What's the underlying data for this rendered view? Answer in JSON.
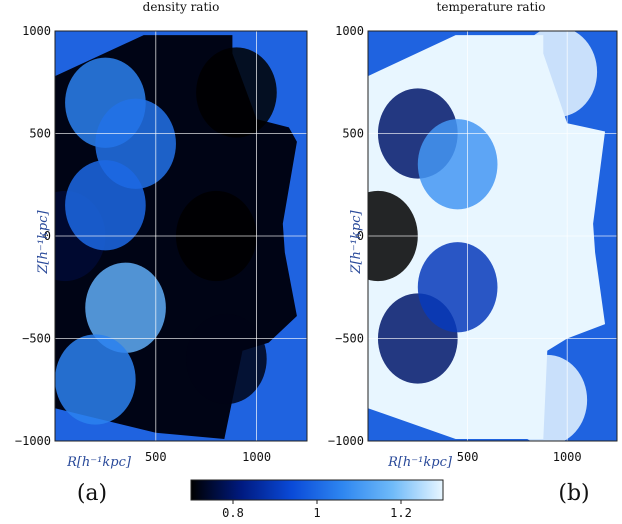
{
  "chart_data": [
    {
      "type": "heatmap",
      "panel_label": "(a)",
      "title": "density ratio",
      "xlabel": "R[h⁻¹kpc]",
      "ylabel": "Z[h⁻¹kpc]",
      "xlim": [
        0,
        1250
      ],
      "ylim": [
        -1000,
        1000
      ],
      "xticks": [
        500,
        1000
      ],
      "yticks": [
        1000,
        500,
        0,
        -500,
        -1000
      ],
      "grid": true,
      "background_color": "#1f63e0",
      "field": [
        {
          "R": 50,
          "Z": 0,
          "value": 0.75
        },
        {
          "R": 250,
          "Z": 650,
          "value": 1.05
        },
        {
          "R": 400,
          "Z": 450,
          "value": 1.02
        },
        {
          "R": 250,
          "Z": 150,
          "value": 1.0
        },
        {
          "R": 350,
          "Z": -350,
          "value": 1.15
        },
        {
          "R": 200,
          "Z": -700,
          "value": 1.05
        },
        {
          "R": 800,
          "Z": 0,
          "value": 0.7
        },
        {
          "R": 900,
          "Z": 700,
          "value": 0.7
        },
        {
          "R": 850,
          "Z": -600,
          "value": 0.72
        }
      ]
    },
    {
      "type": "heatmap",
      "panel_label": "(b)",
      "title": "temperature ratio",
      "xlabel": "R[h⁻¹kpc]",
      "ylabel": "Z[h⁻¹kpc]",
      "xlim": [
        0,
        1250
      ],
      "ylim": [
        -1000,
        1000
      ],
      "xticks": [
        500,
        1000
      ],
      "yticks": [
        1000,
        500,
        0,
        -500,
        -1000
      ],
      "grid": true,
      "background_color": "#1f63e0",
      "field": [
        {
          "R": 50,
          "Z": 0,
          "value": 0.7
        },
        {
          "R": 250,
          "Z": 500,
          "value": 0.8
        },
        {
          "R": 250,
          "Z": -500,
          "value": 0.8
        },
        {
          "R": 450,
          "Z": 350,
          "value": 1.1
        },
        {
          "R": 450,
          "Z": -250,
          "value": 0.9
        },
        {
          "R": 800,
          "Z": 0,
          "value": 1.3
        },
        {
          "R": 950,
          "Z": 800,
          "value": 1.3
        },
        {
          "R": 900,
          "Z": -800,
          "value": 1.3
        }
      ]
    }
  ],
  "colorbar": {
    "min": 0.7,
    "max": 1.3,
    "ticks": [
      {
        "value": 0.8,
        "label": "0.8"
      },
      {
        "value": 1.0,
        "label": "1"
      },
      {
        "value": 1.2,
        "label": "1.2"
      }
    ],
    "stops": [
      "#000000",
      "#001a80",
      "#0a4ad8",
      "#2e86f0",
      "#6fbaf8",
      "#e8f6ff"
    ]
  }
}
